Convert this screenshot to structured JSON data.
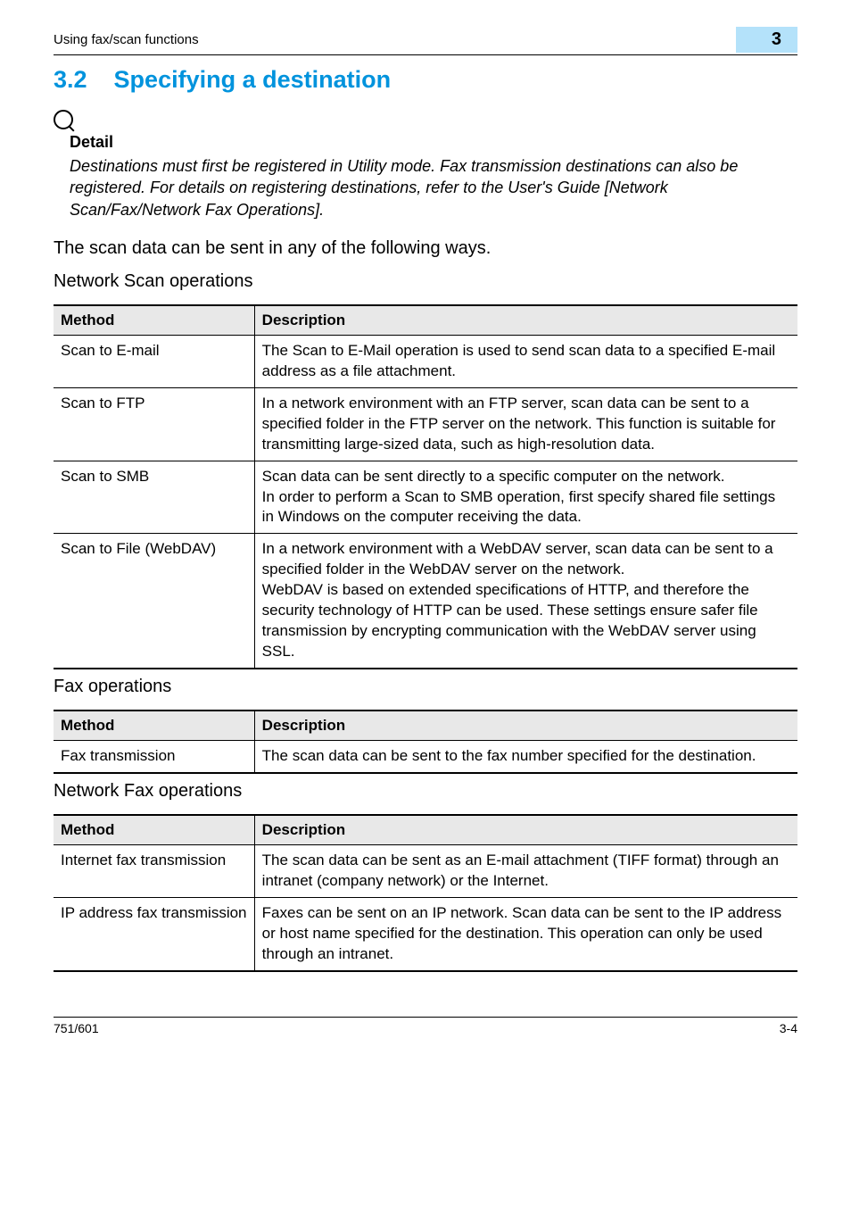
{
  "header": {
    "left": "Using fax/scan functions",
    "chapter_num": "3"
  },
  "heading": {
    "num": "3.2",
    "title": "Specifying a destination"
  },
  "detail": {
    "label": "Detail",
    "text": "Destinations must first be registered in Utility mode. Fax transmission destinations can also be registered. For details on registering destinations, refer to the User's Guide [Network Scan/Fax/Network Fax Operations]."
  },
  "intro": "The scan data can be sent in any of the following ways.",
  "section1": {
    "title": "Network Scan operations",
    "columns": [
      "Method",
      "Description"
    ],
    "rows": [
      [
        "Scan to E-mail",
        "The Scan to E-Mail operation is used to send scan data to a specified E-mail address as a file attachment."
      ],
      [
        "Scan to FTP",
        "In a network environment with an FTP server, scan data can be sent to a specified folder in the FTP server on the network. This function is suitable for transmitting large-sized data, such as high-resolution data."
      ],
      [
        "Scan to SMB",
        "Scan data can be sent directly to a specific computer on the network.\nIn order to perform a Scan to SMB operation, first specify shared file settings in Windows on the computer receiving the data."
      ],
      [
        "Scan to File (WebDAV)",
        "In a network environment with a WebDAV server, scan data can be sent to a specified folder in the WebDAV server on the network.\nWebDAV is based on extended specifications of HTTP, and therefore the security technology of HTTP can be used. These settings ensure safer file transmission by encrypting communication with the WebDAV server using SSL."
      ]
    ]
  },
  "section2": {
    "title": "Fax operations",
    "columns": [
      "Method",
      "Description"
    ],
    "rows": [
      [
        "Fax transmission",
        "The scan data can be sent to the fax number specified for the destination."
      ]
    ]
  },
  "section3": {
    "title": "Network Fax operations",
    "columns": [
      "Method",
      "Description"
    ],
    "rows": [
      [
        "Internet fax transmission",
        "The scan data can be sent as an E-mail attachment (TIFF format) through an intranet (company network) or the Internet."
      ],
      [
        "IP address fax transmission",
        "Faxes can be sent on an IP network. Scan data can be sent to the IP address or host name specified for the destination. This operation can only be used through an intranet."
      ]
    ]
  },
  "footer": {
    "left": "751/601",
    "right": "3-4"
  },
  "colors": {
    "heading": "#0093dd",
    "tab_bg": "#b4e2fa",
    "th_bg": "#e8e8e8"
  }
}
